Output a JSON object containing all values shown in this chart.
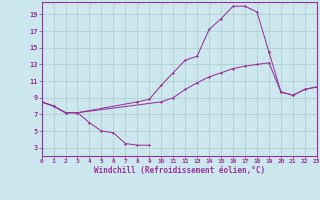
{
  "xlabel": "Windchill (Refroidissement éolien,°C)",
  "bg_color": "#cce8ee",
  "grid_color": "#aacccc",
  "line_color": "#993399",
  "xlim": [
    0,
    23
  ],
  "ylim": [
    2,
    20.5
  ],
  "xticks": [
    0,
    1,
    2,
    3,
    4,
    5,
    6,
    7,
    8,
    9,
    10,
    11,
    12,
    13,
    14,
    15,
    16,
    17,
    18,
    19,
    20,
    21,
    22,
    23
  ],
  "yticks": [
    3,
    5,
    7,
    9,
    11,
    13,
    15,
    17,
    19
  ],
  "lines": [
    {
      "x": [
        0,
        1,
        2,
        3,
        4,
        5,
        6,
        7,
        8,
        9
      ],
      "y": [
        8.5,
        8.0,
        7.2,
        7.2,
        6.0,
        5.0,
        4.8,
        3.5,
        3.3,
        3.3
      ]
    },
    {
      "x": [
        0,
        1,
        2,
        3,
        8,
        9,
        10,
        11,
        12,
        13,
        14,
        15,
        16,
        17,
        18,
        19
      ],
      "y": [
        8.5,
        8.0,
        7.2,
        7.2,
        8.5,
        8.8,
        10.5,
        12.0,
        13.5,
        14.0,
        17.2,
        18.5,
        20.0,
        20.0,
        19.3,
        14.5
      ]
    },
    {
      "x": [
        19,
        20,
        21,
        22,
        23
      ],
      "y": [
        14.5,
        9.7,
        9.3,
        10.0,
        10.3
      ]
    },
    {
      "x": [
        0,
        1,
        2,
        3,
        10,
        11,
        12,
        13,
        14,
        15,
        16,
        17,
        18,
        19,
        20,
        21,
        22,
        23
      ],
      "y": [
        8.5,
        8.0,
        7.2,
        7.2,
        8.5,
        9.0,
        10.0,
        10.8,
        11.5,
        12.0,
        12.5,
        12.8,
        13.0,
        13.2,
        9.7,
        9.3,
        10.0,
        10.3
      ]
    }
  ],
  "figsize": [
    3.2,
    2.0
  ],
  "dpi": 100
}
